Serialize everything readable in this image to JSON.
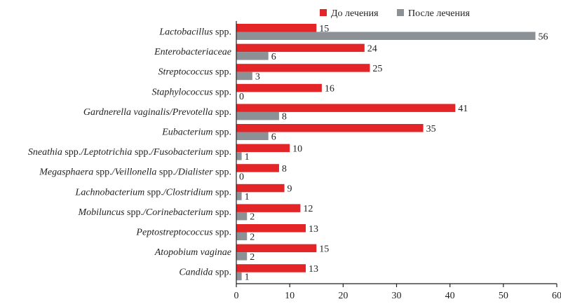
{
  "colors": {
    "before": "#e32528",
    "after": "#8c9196",
    "axis": "#231f20"
  },
  "chart_data": {
    "type": "bar",
    "orientation": "horizontal",
    "categories": [
      "Lactobacillus spp.",
      "Enterobacteriaceae",
      "Streptococcus spp.",
      "Staphylococcus spp.",
      "Gardnerella vaginalis/Prevotella spp.",
      "Eubacterium spp.",
      "Sneathia spp./Leptotrichia spp./Fusobacterium spp.",
      "Megasphaera spp./Veillonella spp./Dialister spp.",
      "Lachnobacterium spp./Clostridium spp.",
      "Mobiluncus spp./Corinebacterium spp.",
      "Peptostreptococcus spp.",
      "Atopobium vaginae",
      "Candida spp."
    ],
    "series": [
      {
        "name": "До лечения",
        "values": [
          15,
          24,
          25,
          16,
          41,
          35,
          10,
          8,
          9,
          12,
          13,
          15,
          13
        ]
      },
      {
        "name": "После лечения",
        "values": [
          56,
          6,
          3,
          0,
          8,
          6,
          1,
          0,
          1,
          2,
          2,
          2,
          1
        ]
      }
    ],
    "xlim": [
      0,
      60
    ],
    "xticks": [
      0,
      10,
      20,
      30,
      40,
      50,
      60
    ],
    "title": "",
    "xlabel": "",
    "ylabel": "",
    "legend": "top",
    "grid": false
  }
}
